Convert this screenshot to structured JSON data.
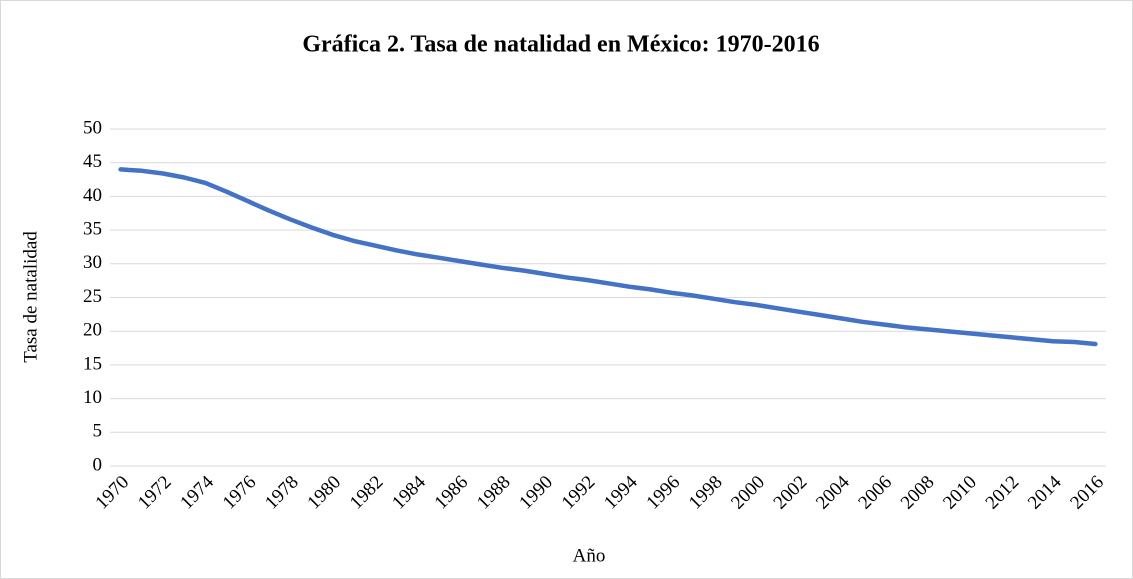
{
  "chart_data": {
    "type": "line",
    "title": "Gráfica 2. Tasa de natalidad en México: 1970-2016",
    "x_label": "Año",
    "y_label": "Tasa de natalidad",
    "categories": [
      "1970",
      null,
      "1972",
      null,
      "1974",
      null,
      "1976",
      null,
      "1978",
      null,
      "1980",
      null,
      "1982",
      null,
      "1984",
      null,
      "1986",
      null,
      "1988",
      null,
      "1990",
      null,
      "1992",
      null,
      "1994",
      null,
      "1996",
      null,
      "1998",
      null,
      "2000",
      null,
      "2002",
      null,
      "2004",
      null,
      "2006",
      null,
      "2008",
      null,
      "2010",
      null,
      "2012",
      null,
      "2014",
      null,
      "2016"
    ],
    "series": [
      {
        "name": "Tasa de natalidad",
        "color": "#4472c4",
        "values": [
          44.0,
          43.8,
          43.4,
          42.8,
          42.0,
          40.7,
          39.3,
          37.9,
          36.6,
          35.4,
          34.3,
          33.4,
          32.7,
          32.0,
          31.4,
          30.9,
          30.4,
          29.9,
          29.4,
          29.0,
          28.5,
          28.0,
          27.6,
          27.1,
          26.6,
          26.2,
          25.7,
          25.3,
          24.8,
          24.3,
          23.9,
          23.4,
          22.9,
          22.4,
          21.9,
          21.4,
          21.0,
          20.6,
          20.3,
          20.0,
          19.7,
          19.4,
          19.1,
          18.8,
          18.5,
          18.4,
          18.1
        ]
      }
    ],
    "ylim": [
      0,
      50
    ],
    "yticks": [
      0,
      5,
      10,
      15,
      20,
      25,
      30,
      35,
      40,
      45,
      50
    ],
    "grid": true
  }
}
